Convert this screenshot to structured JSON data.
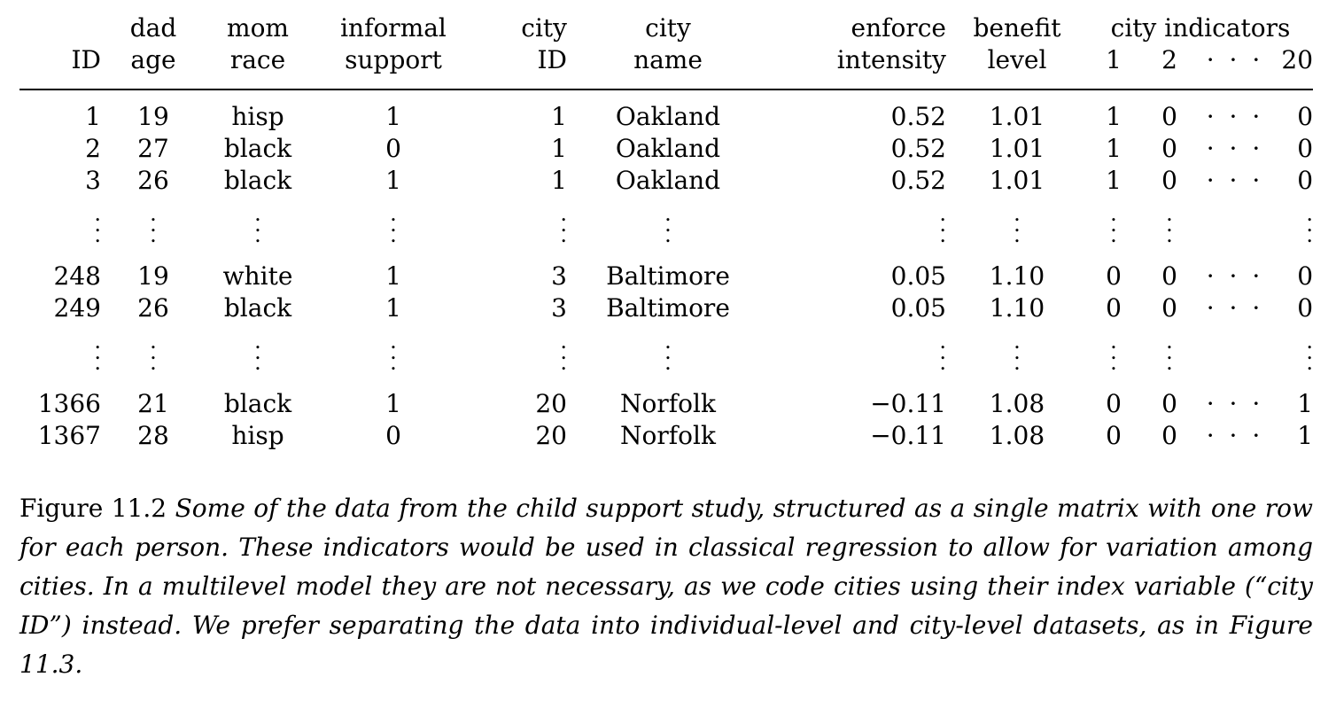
{
  "table": {
    "headers_top": {
      "id": "",
      "dad": "dad",
      "mom": "mom",
      "informal": "informal",
      "city": "city",
      "city_name": "city",
      "enforce": "enforce",
      "benefit": "benefit",
      "indicators": "city indicators"
    },
    "headers_bottom": {
      "id": "ID",
      "dad": "age",
      "mom": "race",
      "informal": "support",
      "city": "ID",
      "city_name": "name",
      "enforce": "intensity",
      "benefit": "level",
      "ind1": "1",
      "ind2": "2",
      "ind_dots": "· · ·",
      "ind20": "20"
    },
    "group1": [
      [
        "1",
        "19",
        "hisp",
        "1",
        "1",
        "Oakland",
        "0.52",
        "1.01",
        "1",
        "0",
        "· · ·",
        "0"
      ],
      [
        "2",
        "27",
        "black",
        "0",
        "1",
        "Oakland",
        "0.52",
        "1.01",
        "1",
        "0",
        "· · ·",
        "0"
      ],
      [
        "3",
        "26",
        "black",
        "1",
        "1",
        "Oakland",
        "0.52",
        "1.01",
        "1",
        "0",
        "· · ·",
        "0"
      ]
    ],
    "group2": [
      [
        "248",
        "19",
        "white",
        "1",
        "3",
        "Baltimore",
        "0.05",
        "1.10",
        "0",
        "0",
        "· · ·",
        "0"
      ],
      [
        "249",
        "26",
        "black",
        "1",
        "3",
        "Baltimore",
        "0.05",
        "1.10",
        "0",
        "0",
        "· · ·",
        "0"
      ]
    ],
    "group3": [
      [
        "1366",
        "21",
        "black",
        "1",
        "20",
        "Norfolk",
        "−0.11",
        "1.08",
        "0",
        "0",
        "· · ·",
        "1"
      ],
      [
        "1367",
        "28",
        "hisp",
        "0",
        "20",
        "Norfolk",
        "−0.11",
        "1.08",
        "0",
        "0",
        "· · ·",
        "1"
      ]
    ]
  },
  "caption": {
    "label": "Figure 11.2",
    "text": "Some of the data from the child support study, structured as a single matrix with one row for each person. These indicators would be used in classical regression to allow for variation among cities. In a multilevel model they are not necessary, as we code cities using their index variable (“city ID”) instead. We prefer separating the data into individual-level and city-level datasets, as in Figure 11.3."
  }
}
